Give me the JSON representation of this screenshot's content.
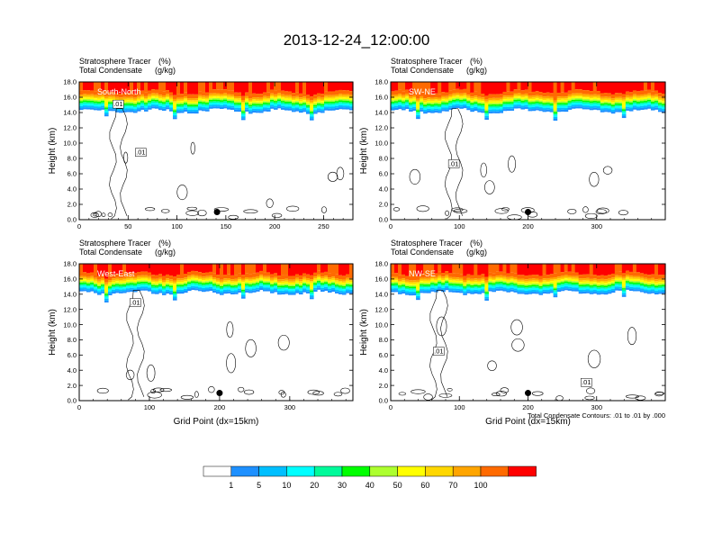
{
  "title": "2013-12-24_12:00:00",
  "panel_text": {
    "line1_left": "Stratosphere Tracer",
    "line1_right": "(%)",
    "line2_left": "Total Condensate",
    "line2_right": "(g/kg)",
    "ylabel": "Height (km)",
    "xlabel": "Grid Point (dx=15km)",
    "contour_note": "Total Condensate Contours: .01 to .01 by .000"
  },
  "colorbar": {
    "colors": [
      "#ffffff",
      "#1e90ff",
      "#00bfff",
      "#00ffff",
      "#00fa9a",
      "#00ff00",
      "#adff2f",
      "#ffff00",
      "#ffd700",
      "#ffa500",
      "#ff6a00",
      "#ff0000"
    ],
    "labels": [
      "1",
      "5",
      "10",
      "20",
      "30",
      "40",
      "50",
      "60",
      "70",
      "100"
    ]
  },
  "chart_data": [
    {
      "type": "heatmap",
      "name": "South-North",
      "ylim": [
        0,
        18
      ],
      "yticks": [
        "0.0",
        "2.0",
        "4.0",
        "6.0",
        "8.0",
        "10.0",
        "12.0",
        "14.0",
        "16.0",
        "18.0"
      ],
      "xlim": [
        0,
        280
      ],
      "xticks": [
        0,
        50,
        100,
        150,
        200,
        250
      ],
      "marker": {
        "x": 141,
        "y": 1.0
      },
      "contour_labels": [
        {
          "x": 40,
          "y": 15.1,
          "text": ".01"
        },
        {
          "x": 63,
          "y": 8.8,
          "text": ".01"
        }
      ]
    },
    {
      "type": "heatmap",
      "name": "SW-NE",
      "ylim": [
        0,
        18
      ],
      "yticks": [
        "0.0",
        "2.0",
        "4.0",
        "6.0",
        "8.0",
        "10.0",
        "12.0",
        "14.0",
        "16.0",
        "18.0"
      ],
      "xlim": [
        0,
        400
      ],
      "xticks": [
        0,
        100,
        200,
        300
      ],
      "marker": {
        "x": 200,
        "y": 1.0
      },
      "contour_labels": [
        {
          "x": 92,
          "y": 7.3,
          "text": ".01"
        }
      ]
    },
    {
      "type": "heatmap",
      "name": "West-East",
      "ylim": [
        0,
        18
      ],
      "yticks": [
        "0.0",
        "2.0",
        "4.0",
        "6.0",
        "8.0",
        "10.0",
        "12.0",
        "14.0",
        "16.0",
        "18.0"
      ],
      "xlim": [
        0,
        390
      ],
      "xticks": [
        0,
        100,
        200,
        300
      ],
      "marker": {
        "x": 200,
        "y": 1.0
      },
      "contour_labels": [
        {
          "x": 80,
          "y": 12.9,
          "text": ".01"
        }
      ]
    },
    {
      "type": "heatmap",
      "name": "NW-SE",
      "ylim": [
        0,
        18
      ],
      "yticks": [
        "0.0",
        "2.0",
        "4.0",
        "6.0",
        "8.0",
        "10.0",
        "12.0",
        "14.0",
        "16.0",
        "18.0"
      ],
      "xlim": [
        0,
        400
      ],
      "xticks": [
        0,
        100,
        200,
        300
      ],
      "marker": {
        "x": 200,
        "y": 1.0
      },
      "contour_labels": [
        {
          "x": 70,
          "y": 6.5,
          "text": ".01"
        },
        {
          "x": 285,
          "y": 2.4,
          "text": ".01"
        }
      ]
    }
  ]
}
